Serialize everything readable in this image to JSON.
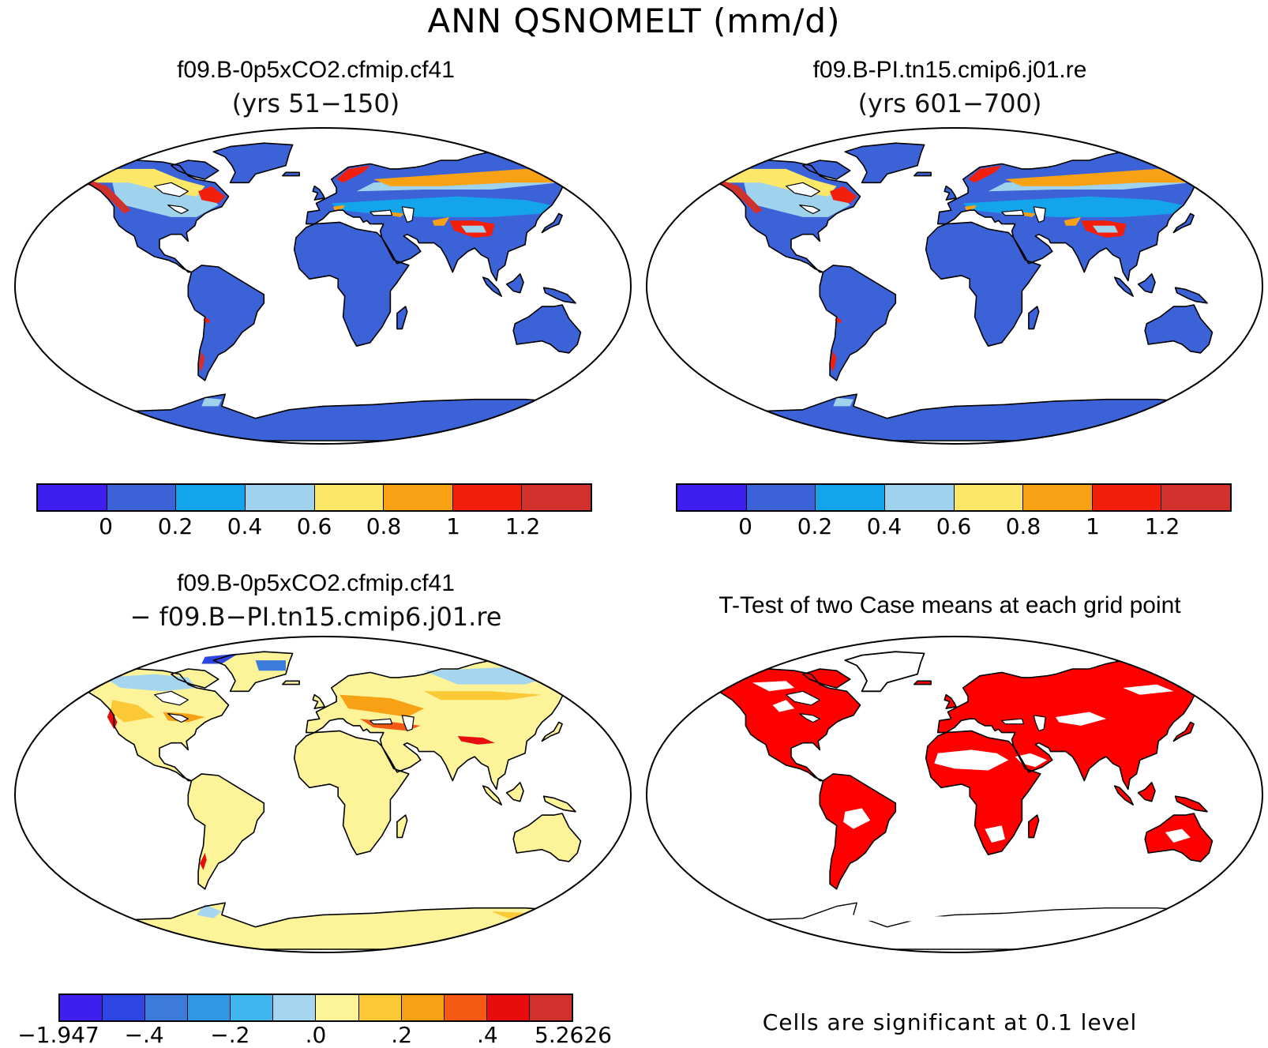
{
  "figure": {
    "title": "ANN QSNOMELT (mm/d)"
  },
  "panels": {
    "top_left": {
      "title": "f09.B-0p5xCO2.cfmip.cf41",
      "subtitle": "(yrs 51−150)"
    },
    "top_right": {
      "title": "f09.B-PI.tn15.cmip6.j01.re",
      "subtitle": "(yrs 601−700)"
    },
    "bottom_left": {
      "title": "f09.B-0p5xCO2.cfmip.cf41",
      "subtitle": "− f09.B−PI.tn15.cmip6.j01.re"
    },
    "bottom_right": {
      "title": "T-Test of two Case means at each grid point",
      "note": "Cells are significant at 0.1 level"
    }
  },
  "colorbars": {
    "means": {
      "colors": [
        "#3f1ff0",
        "#3c62d8",
        "#14a4ec",
        "#9fd2ec",
        "#fbe768",
        "#f8a114",
        "#f21f0c",
        "#d1312c"
      ],
      "tick_labels": [
        "0",
        "0.2",
        "0.4",
        "0.6",
        "0.8",
        "1",
        "1.2"
      ]
    },
    "difference": {
      "colors": [
        "#3f1ff0",
        "#2d46e2",
        "#3b7bdc",
        "#2f98e6",
        "#3fb6ee",
        "#a6d6ef",
        "#fdf49a",
        "#fbc836",
        "#f8a114",
        "#f45a14",
        "#e70d0c",
        "#d1312c"
      ],
      "tick_labels": [
        "−1.947",
        "−.4",
        "−.2",
        ".0",
        ".2",
        ".4",
        "5.2626"
      ]
    }
  },
  "map_colors": {
    "ocean": "#ffffff",
    "land_mean": "#3c62d8",
    "land_diff": "#fdf49a",
    "significant": "#ff0000",
    "coast": "#000000"
  }
}
